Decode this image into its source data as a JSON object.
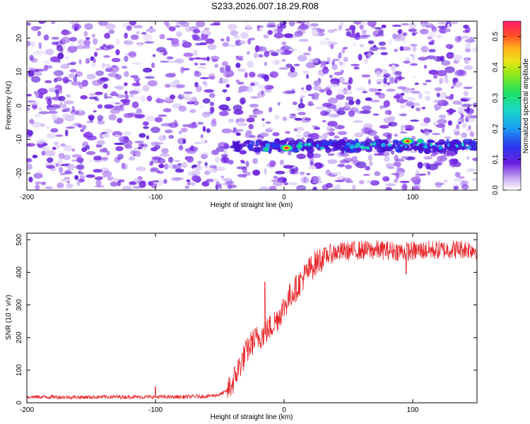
{
  "title": "S233.2026.007.18.29.R08",
  "colors": {
    "heat_low": "#ffffff",
    "heat_mid": "#6b1fe0",
    "heat_high": "#ff1e6e",
    "snr_line": "#e8262a",
    "axis": "#000000"
  },
  "chart_data": [
    {
      "type": "heatmap",
      "xlabel": "Height of straight line (km)",
      "ylabel": "Frequency (Hz)",
      "colorbar_label": "Normalized spectral amplitude",
      "xlim": [
        -200,
        150
      ],
      "ylim": [
        -25,
        25
      ],
      "x_ticks": [
        -200,
        -100,
        0,
        100
      ],
      "y_ticks": [
        -20,
        -10,
        0,
        10,
        20
      ],
      "colorbar_range": [
        0,
        0.55
      ],
      "colorbar_ticks": [
        0,
        0.1,
        0.2,
        0.3,
        0.4,
        0.5
      ],
      "background_level": 0.04,
      "signal_band": {
        "frequency": -12,
        "x_start": -40,
        "x_end": 150,
        "hotspots": [
          {
            "x": 2,
            "frequency": -12.5,
            "amplitude": 0.55
          },
          {
            "x": 12,
            "frequency": -12,
            "amplitude": 0.22
          },
          {
            "x": -14,
            "frequency": -13,
            "amplitude": 0.18
          },
          {
            "x": 96,
            "frequency": -10.5,
            "amplitude": 0.55
          },
          {
            "x": 106,
            "frequency": -10.5,
            "amplitude": 0.22
          }
        ]
      }
    },
    {
      "type": "line",
      "xlabel": "Height of straight line (km)",
      "ylabel": "SNR (10 * v/v)",
      "xlim": [
        -200,
        150
      ],
      "ylim": [
        0,
        520
      ],
      "x_ticks": [
        -200,
        -100,
        0,
        100
      ],
      "y_ticks": [
        0,
        100,
        200,
        300,
        400,
        500
      ],
      "series": [
        {
          "x": [
            -200,
            -180,
            -160,
            -140,
            -120,
            -100,
            -80,
            -60,
            -50,
            -45,
            -40,
            -35,
            -30,
            -25,
            -20,
            -15,
            -10,
            -5,
            0,
            5,
            10,
            15,
            20,
            25,
            30,
            35,
            40,
            50,
            60,
            70,
            80,
            90,
            100,
            110,
            120,
            130,
            140,
            150
          ],
          "y": [
            18,
            18,
            17,
            18,
            18,
            18,
            18,
            20,
            25,
            35,
            60,
            110,
            150,
            185,
            200,
            215,
            235,
            260,
            295,
            330,
            355,
            385,
            410,
            430,
            445,
            455,
            462,
            465,
            468,
            468,
            468,
            465,
            465,
            468,
            468,
            470,
            472,
            470
          ],
          "noise_amplitude": 30,
          "spikes": [
            {
              "x": -15,
              "y": 370
            },
            {
              "x": 95,
              "y": 395
            },
            {
              "x": -100,
              "y": 50
            }
          ]
        }
      ]
    }
  ]
}
